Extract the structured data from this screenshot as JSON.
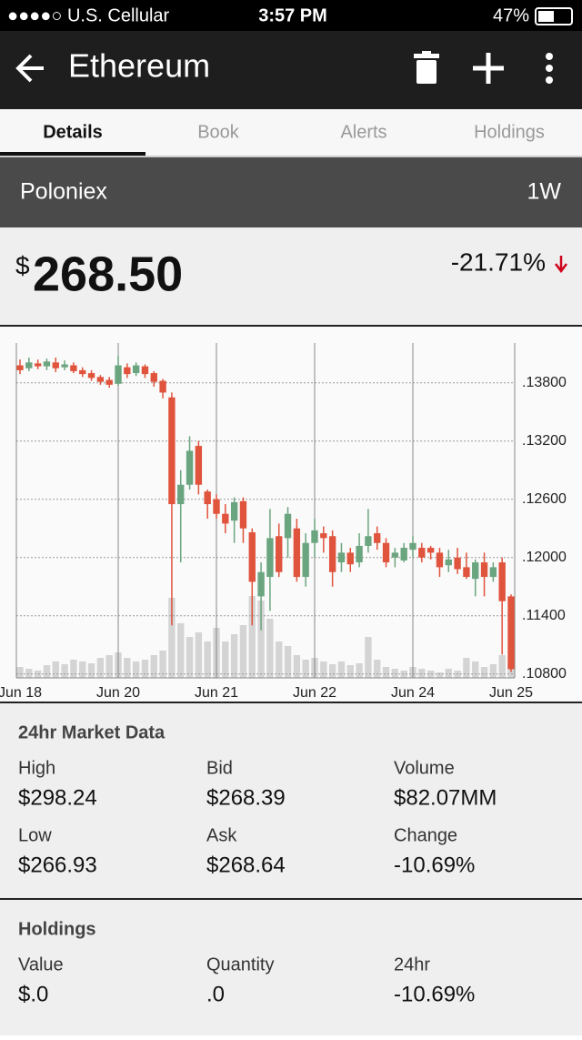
{
  "status_bar": {
    "carrier": "●●●●○ U.S. Cellular",
    "time": "3:57 PM",
    "battery": "47%"
  },
  "header": {
    "title": "Ethereum"
  },
  "tabs": [
    "Details",
    "Book",
    "Alerts",
    "Holdings"
  ],
  "exchange": {
    "name": "Poloniex",
    "range": "1W"
  },
  "price": {
    "currency": "$",
    "value": "268.50",
    "change": "-21.71%"
  },
  "chart_data": {
    "type": "candlestick",
    "up_color": "#6ba57f",
    "down_color": "#e0533c",
    "volume_color": "#d4d4d4",
    "x_labels": [
      "Jun 18",
      "Jun 20",
      "Jun 21",
      "Jun 22",
      "Jun 24",
      "Jun 25"
    ],
    "open": [
      0.1398,
      0.1395,
      0.14,
      0.1397,
      0.1401,
      0.1396,
      0.1398,
      0.1393,
      0.139,
      0.1386,
      0.1383,
      0.1379,
      0.1396,
      0.139,
      0.1397,
      0.139,
      0.1382,
      0.1365,
      0.1255,
      0.1275,
      0.1315,
      0.1268,
      0.126,
      0.1245,
      0.1238,
      0.1258,
      0.1226,
      0.116,
      0.118,
      0.1222,
      0.122,
      0.123,
      0.118,
      0.1215,
      0.1225,
      0.1222,
      0.1195,
      0.1205,
      0.1195,
      0.1212,
      0.1225,
      0.1215,
      0.12,
      0.1197,
      0.1208,
      0.121,
      0.121,
      0.1205,
      0.1192,
      0.12,
      0.119,
      0.1178,
      0.1195,
      0.118,
      0.1195,
      0.116
    ],
    "close": [
      0.1393,
      0.1401,
      0.1397,
      0.1402,
      0.1395,
      0.1399,
      0.1392,
      0.1389,
      0.1385,
      0.1381,
      0.1378,
      0.1398,
      0.1389,
      0.1398,
      0.1389,
      0.1381,
      0.137,
      0.1255,
      0.1275,
      0.131,
      0.1275,
      0.1255,
      0.1245,
      0.1235,
      0.1257,
      0.123,
      0.1175,
      0.1185,
      0.122,
      0.1185,
      0.1245,
      0.118,
      0.1215,
      0.1228,
      0.122,
      0.1185,
      0.1205,
      0.1193,
      0.1212,
      0.1222,
      0.1215,
      0.1195,
      0.1205,
      0.121,
      0.1215,
      0.12,
      0.1205,
      0.119,
      0.1198,
      0.1188,
      0.118,
      0.1195,
      0.118,
      0.119,
      0.1155,
      0.1085
    ],
    "high": [
      0.1404,
      0.1406,
      0.1404,
      0.1405,
      0.1406,
      0.1403,
      0.1401,
      0.1396,
      0.1393,
      0.1388,
      0.1386,
      0.1408,
      0.14,
      0.1401,
      0.1399,
      0.1392,
      0.1384,
      0.137,
      0.129,
      0.1325,
      0.132,
      0.127,
      0.1265,
      0.1255,
      0.1262,
      0.1262,
      0.123,
      0.1195,
      0.125,
      0.1235,
      0.1252,
      0.124,
      0.1225,
      0.124,
      0.1232,
      0.1228,
      0.1215,
      0.121,
      0.1225,
      0.125,
      0.1232,
      0.122,
      0.121,
      0.1215,
      0.1222,
      0.1215,
      0.1212,
      0.121,
      0.1208,
      0.121,
      0.1205,
      0.1198,
      0.1205,
      0.1195,
      0.12,
      0.1162
    ],
    "low": [
      0.1389,
      0.1392,
      0.1394,
      0.1393,
      0.1391,
      0.1393,
      0.139,
      0.1386,
      0.1382,
      0.1378,
      0.1375,
      0.1377,
      0.1385,
      0.1387,
      0.1385,
      0.1376,
      0.1364,
      0.113,
      0.1195,
      0.127,
      0.1265,
      0.124,
      0.124,
      0.1225,
      0.1215,
      0.1215,
      0.113,
      0.1125,
      0.1145,
      0.118,
      0.12,
      0.1175,
      0.117,
      0.12,
      0.1205,
      0.117,
      0.1185,
      0.1185,
      0.119,
      0.1205,
      0.1208,
      0.119,
      0.119,
      0.1195,
      0.12,
      0.1195,
      0.1198,
      0.118,
      0.1185,
      0.1183,
      0.1178,
      0.116,
      0.116,
      0.1175,
      0.11,
      0.1082
    ],
    "volume": [
      12,
      10,
      8,
      14,
      18,
      15,
      20,
      18,
      16,
      22,
      25,
      28,
      22,
      18,
      20,
      25,
      30,
      88,
      60,
      45,
      50,
      40,
      55,
      40,
      48,
      58,
      90,
      85,
      65,
      40,
      35,
      25,
      20,
      22,
      18,
      15,
      18,
      14,
      16,
      45,
      20,
      12,
      10,
      8,
      12,
      10,
      8,
      6,
      10,
      8,
      22,
      18,
      12,
      15,
      25,
      20
    ],
    "ylim": [
      0.1076,
      0.1421
    ],
    "yticks": [
      {
        "value": 0.138,
        "label": ".13800"
      },
      {
        "value": 0.132,
        "label": ".13200"
      },
      {
        "value": 0.126,
        "label": ".12600"
      },
      {
        "value": 0.12,
        "label": ".12000"
      },
      {
        "value": 0.114,
        "label": ".11400"
      },
      {
        "value": 0.108,
        "label": ".10800"
      }
    ],
    "grid": true
  },
  "market_data": {
    "title": "24hr Market Data",
    "items": [
      {
        "label": "High",
        "value": "$298.24"
      },
      {
        "label": "Bid",
        "value": "$268.39"
      },
      {
        "label": "Volume",
        "value": "$82.07MM"
      },
      {
        "label": "Low",
        "value": "$266.93"
      },
      {
        "label": "Ask",
        "value": "$268.64"
      },
      {
        "label": "Change",
        "value": "-10.69%"
      }
    ]
  },
  "holdings": {
    "title": "Holdings",
    "items": [
      {
        "label": "Value",
        "value": "$.0"
      },
      {
        "label": "Quantity",
        "value": ".0"
      },
      {
        "label": "24hr",
        "value": "-10.69%"
      }
    ]
  }
}
